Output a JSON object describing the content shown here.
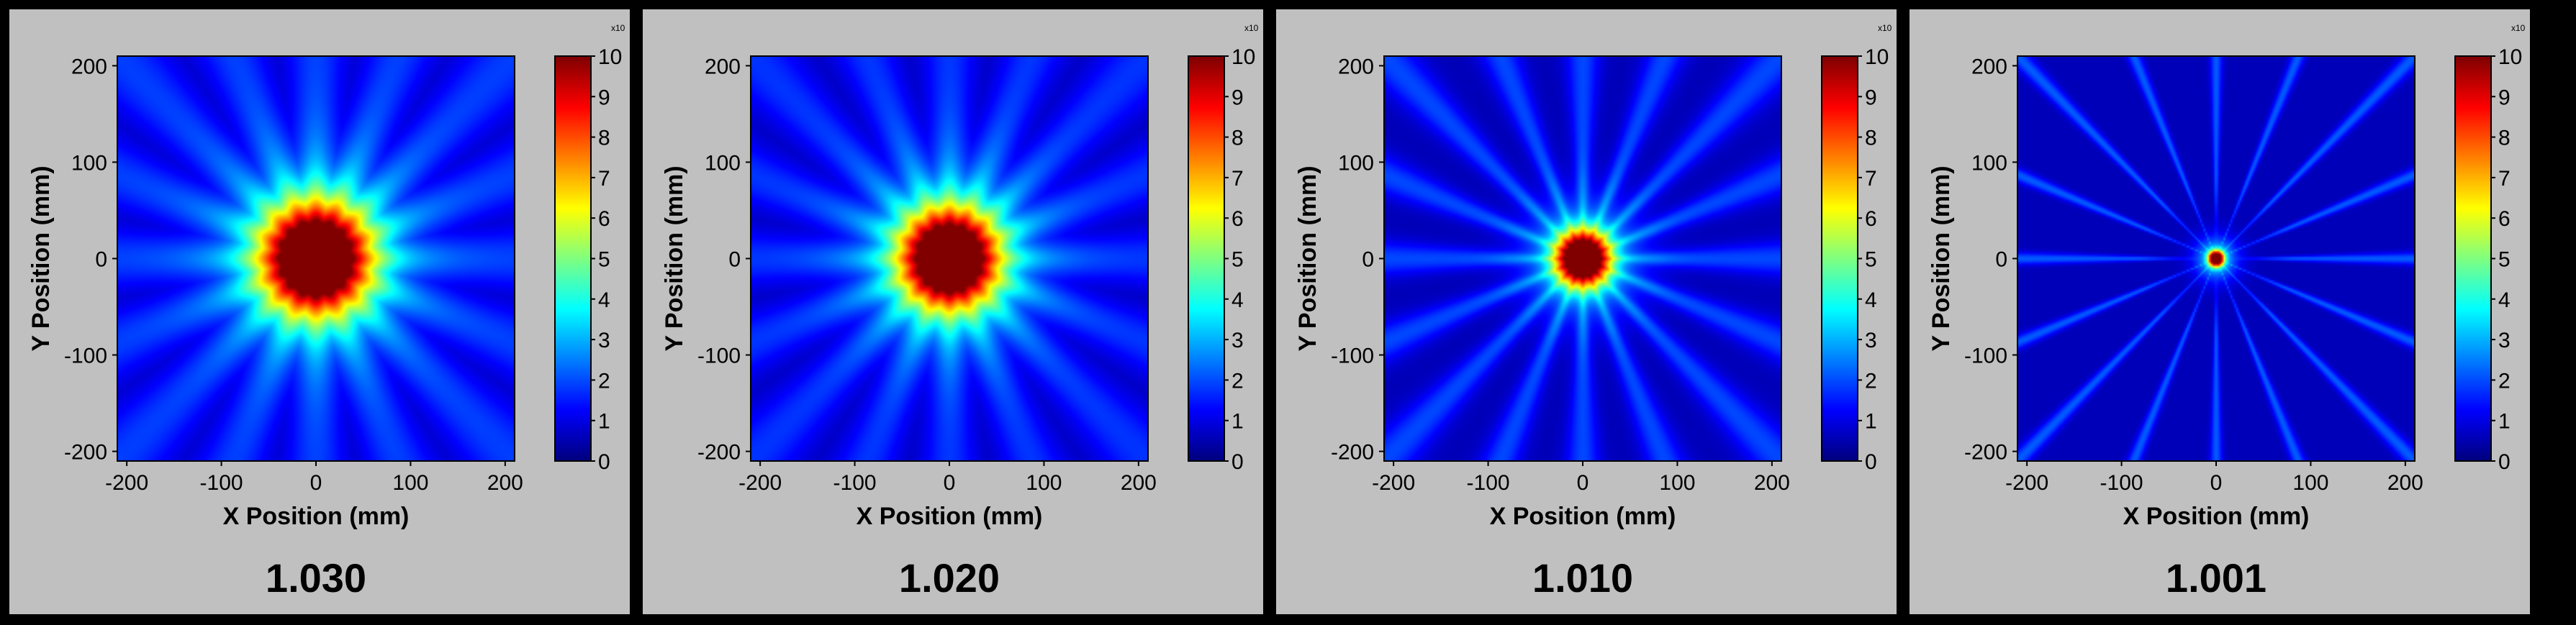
{
  "chart_data": [
    {
      "type": "heatmap",
      "title": "1.030",
      "xlabel": "X Position (mm)",
      "ylabel": "Y Position (mm)",
      "xlim": [
        -210,
        210
      ],
      "ylim": [
        -210,
        210
      ],
      "xticks": [
        -200,
        -100,
        0,
        100,
        200
      ],
      "yticks": [
        -200,
        -100,
        0,
        100,
        200
      ],
      "colorbar": {
        "min": 0,
        "max": 10,
        "ticks": [
          0,
          1,
          2,
          3,
          4,
          5,
          6,
          7,
          8,
          9,
          10
        ],
        "corner_mark": "x10"
      },
      "pattern": {
        "center_value": 10,
        "core_radius_mm": 55,
        "halo_radius_mm": 100,
        "ray_count": 16,
        "ray_value": 1.3,
        "ray_width_deg": 9
      }
    },
    {
      "type": "heatmap",
      "title": "1.020",
      "xlabel": "X Position (mm)",
      "ylabel": "Y Position (mm)",
      "xlim": [
        -210,
        210
      ],
      "ylim": [
        -210,
        210
      ],
      "xticks": [
        -200,
        -100,
        0,
        100,
        200
      ],
      "yticks": [
        -200,
        -100,
        0,
        100,
        200
      ],
      "colorbar": {
        "min": 0,
        "max": 10,
        "ticks": [
          0,
          1,
          2,
          3,
          4,
          5,
          6,
          7,
          8,
          9,
          10
        ],
        "corner_mark": "x10"
      },
      "pattern": {
        "center_value": 10,
        "core_radius_mm": 50,
        "halo_radius_mm": 95,
        "ray_count": 16,
        "ray_value": 1.2,
        "ray_width_deg": 8
      }
    },
    {
      "type": "heatmap",
      "title": "1.010",
      "xlabel": "X Position (mm)",
      "ylabel": "Y Position (mm)",
      "xlim": [
        -210,
        210
      ],
      "ylim": [
        -210,
        210
      ],
      "xticks": [
        -200,
        -100,
        0,
        100,
        200
      ],
      "yticks": [
        -200,
        -100,
        0,
        100,
        200
      ],
      "colorbar": {
        "min": 0,
        "max": 10,
        "ticks": [
          0,
          1,
          2,
          3,
          4,
          5,
          6,
          7,
          8,
          9,
          10
        ],
        "corner_mark": "x10"
      },
      "pattern": {
        "center_value": 10,
        "core_radius_mm": 28,
        "halo_radius_mm": 60,
        "ray_count": 16,
        "ray_value": 1.4,
        "ray_width_deg": 5
      }
    },
    {
      "type": "heatmap",
      "title": "1.001",
      "xlabel": "X Position (mm)",
      "ylabel": "Y Position (mm)",
      "xlim": [
        -210,
        210
      ],
      "ylim": [
        -210,
        210
      ],
      "xticks": [
        -200,
        -100,
        0,
        100,
        200
      ],
      "yticks": [
        -200,
        -100,
        0,
        100,
        200
      ],
      "colorbar": {
        "min": 0,
        "max": 10,
        "ticks": [
          0,
          1,
          2,
          3,
          4,
          5,
          6,
          7,
          8,
          9,
          10
        ],
        "corner_mark": "x10"
      },
      "pattern": {
        "center_value": 10,
        "core_radius_mm": 8,
        "halo_radius_mm": 22,
        "ray_count": 16,
        "ray_value": 1.6,
        "ray_width_deg": 1.8
      }
    }
  ]
}
